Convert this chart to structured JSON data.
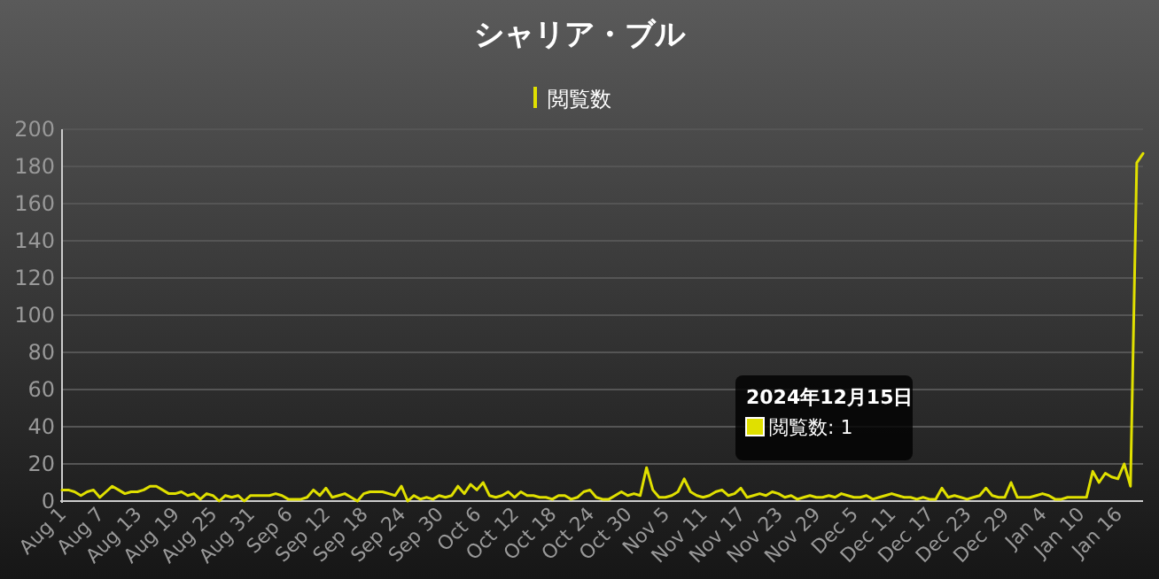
{
  "chart_data": {
    "type": "line",
    "title": "シャリア・ブル",
    "legend": "top",
    "grid": "y",
    "marker": "none",
    "line_style": "solid",
    "categories": [
      "Aug 1",
      null,
      null,
      null,
      null,
      null,
      "Aug 7",
      null,
      null,
      null,
      null,
      null,
      "Aug 13",
      null,
      null,
      null,
      null,
      null,
      "Aug 19",
      null,
      null,
      null,
      null,
      null,
      "Aug 25",
      null,
      null,
      null,
      null,
      null,
      "Aug 31",
      null,
      null,
      null,
      null,
      null,
      "Sep 6",
      null,
      null,
      null,
      null,
      null,
      "Sep 12",
      null,
      null,
      null,
      null,
      null,
      "Sep 18",
      null,
      null,
      null,
      null,
      null,
      "Sep 24",
      null,
      null,
      null,
      null,
      null,
      "Sep 30",
      null,
      null,
      null,
      null,
      null,
      "Oct 6",
      null,
      null,
      null,
      null,
      null,
      "Oct 12",
      null,
      null,
      null,
      null,
      null,
      "Oct 18",
      null,
      null,
      null,
      null,
      null,
      "Oct 24",
      null,
      null,
      null,
      null,
      null,
      "Oct 30",
      null,
      null,
      null,
      null,
      null,
      "Nov 5",
      null,
      null,
      null,
      null,
      null,
      "Nov 11",
      null,
      null,
      null,
      null,
      null,
      "Nov 17",
      null,
      null,
      null,
      null,
      null,
      "Nov 23",
      null,
      null,
      null,
      null,
      null,
      "Nov 29",
      null,
      null,
      null,
      null,
      null,
      "Dec 5",
      null,
      null,
      null,
      null,
      null,
      "Dec 11",
      null,
      null,
      null,
      null,
      null,
      "Dec 17",
      null,
      null,
      null,
      null,
      null,
      "Dec 23",
      null,
      null,
      null,
      null,
      null,
      "Dec 29",
      null,
      null,
      null,
      null,
      null,
      "Jan 4",
      null,
      null,
      null,
      null,
      null,
      "Jan 10",
      null,
      null,
      null,
      null,
      null,
      "Jan 16",
      null,
      null,
      null,
      null
    ],
    "series": [
      {
        "name": "閲覧数",
        "color": "#e0e000",
        "values": [
          6,
          6,
          5,
          3,
          5,
          6,
          2,
          5,
          8,
          6,
          4,
          5,
          5,
          6,
          8,
          8,
          6,
          4,
          4,
          5,
          3,
          4,
          1,
          4,
          3,
          0,
          3,
          2,
          3,
          0,
          3,
          3,
          3,
          3,
          4,
          3,
          1,
          1,
          1,
          2,
          6,
          3,
          7,
          2,
          3,
          4,
          2,
          0,
          4,
          5,
          5,
          5,
          4,
          3,
          8,
          0,
          3,
          1,
          2,
          1,
          3,
          2,
          3,
          8,
          4,
          9,
          6,
          10,
          3,
          2,
          3,
          5,
          2,
          5,
          3,
          3,
          2,
          2,
          1,
          3,
          3,
          1,
          2,
          5,
          6,
          2,
          1,
          1,
          3,
          5,
          3,
          4,
          3,
          18,
          6,
          2,
          2,
          3,
          5,
          12,
          5,
          3,
          2,
          3,
          5,
          6,
          3,
          4,
          7,
          2,
          3,
          4,
          3,
          5,
          4,
          2,
          3,
          1,
          2,
          3,
          2,
          2,
          3,
          2,
          4,
          3,
          2,
          2,
          3,
          1,
          2,
          3,
          4,
          3,
          2,
          2,
          1,
          2,
          1,
          1,
          7,
          2,
          3,
          2,
          1,
          2,
          3,
          7,
          3,
          2,
          2,
          10,
          2,
          2,
          2,
          3,
          4,
          3,
          1,
          1,
          2,
          2,
          2,
          2,
          16,
          10,
          15,
          13,
          12,
          20,
          8,
          182,
          187
        ]
      }
    ],
    "ylim": [
      0,
      200
    ],
    "yticks": [
      0,
      20,
      40,
      60,
      80,
      100,
      120,
      140,
      160,
      180,
      200
    ],
    "annotations": [
      "2024年12月15日",
      "閲覧数: 1"
    ]
  }
}
